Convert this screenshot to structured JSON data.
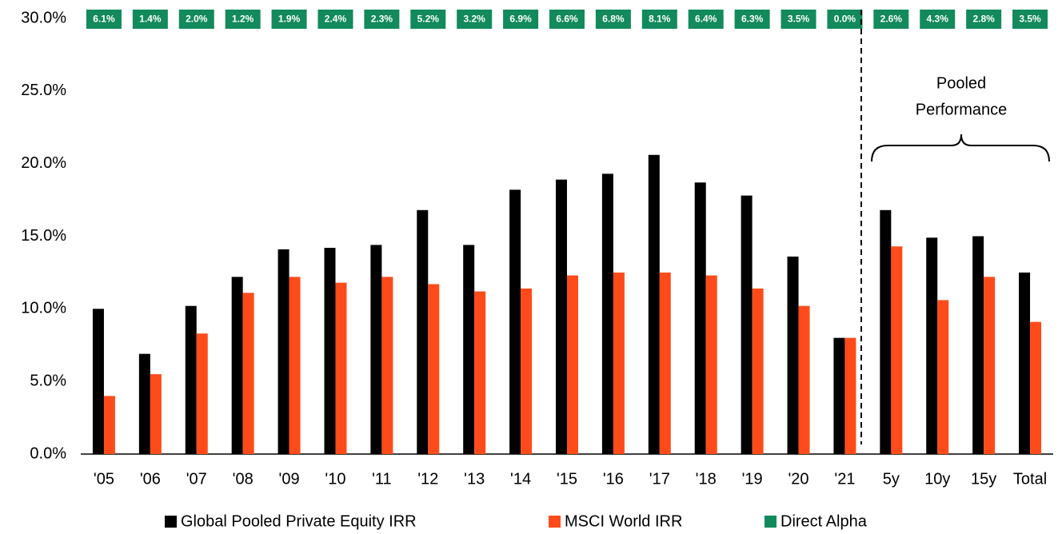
{
  "chart_data": {
    "type": "bar",
    "categories": [
      "'05",
      "'06",
      "'07",
      "'08",
      "'09",
      "'10",
      "'11",
      "'12",
      "'13",
      "'14",
      "'15",
      "'16",
      "'17",
      "'18",
      "'19",
      "'20",
      "'21",
      "5y",
      "10y",
      "15y",
      "Total"
    ],
    "series": [
      {
        "name": "Global Pooled Private Equity IRR",
        "color": "#000000",
        "values": [
          10.0,
          6.9,
          10.2,
          12.2,
          14.1,
          14.2,
          14.4,
          16.8,
          14.4,
          18.2,
          18.9,
          19.3,
          20.6,
          18.7,
          17.8,
          13.6,
          8.0,
          16.8,
          14.9,
          15.0,
          12.5
        ]
      },
      {
        "name": "MSCI World IRR",
        "color": "#ff4b1a",
        "values": [
          4.0,
          5.5,
          8.3,
          11.1,
          12.2,
          11.8,
          12.2,
          11.7,
          11.2,
          11.4,
          12.3,
          12.5,
          12.5,
          12.3,
          11.4,
          10.2,
          8.0,
          14.3,
          10.6,
          12.2,
          9.1
        ]
      },
      {
        "name": "Direct Alpha",
        "color": "#128a5c",
        "values": [
          6.1,
          1.4,
          2.0,
          1.2,
          1.9,
          2.4,
          2.3,
          5.2,
          3.2,
          6.9,
          6.6,
          6.8,
          8.1,
          6.4,
          6.3,
          3.5,
          0.0,
          2.6,
          4.3,
          2.8,
          3.5
        ],
        "value_labels": [
          "6.1%",
          "1.4%",
          "2.0%",
          "1.2%",
          "1.9%",
          "2.4%",
          "2.3%",
          "5.2%",
          "3.2%",
          "6.9%",
          "6.6%",
          "6.8%",
          "8.1%",
          "6.4%",
          "6.3%",
          "3.5%",
          "0.0%",
          "2.6%",
          "4.3%",
          "2.8%",
          "3.5%"
        ]
      }
    ],
    "annotation": [
      "Pooled",
      "Performance"
    ],
    "ylim": [
      0,
      30
    ],
    "yticks": [
      {
        "value": 0,
        "label": "0.0%"
      },
      {
        "value": 5,
        "label": "5.0%"
      },
      {
        "value": 10,
        "label": "10.0%"
      },
      {
        "value": 15,
        "label": "15.0%"
      },
      {
        "value": 20,
        "label": "20.0%"
      },
      {
        "value": 25,
        "label": "25.0%"
      },
      {
        "value": 30,
        "label": "30.0%"
      }
    ],
    "grid": false,
    "legend": "bottom"
  }
}
